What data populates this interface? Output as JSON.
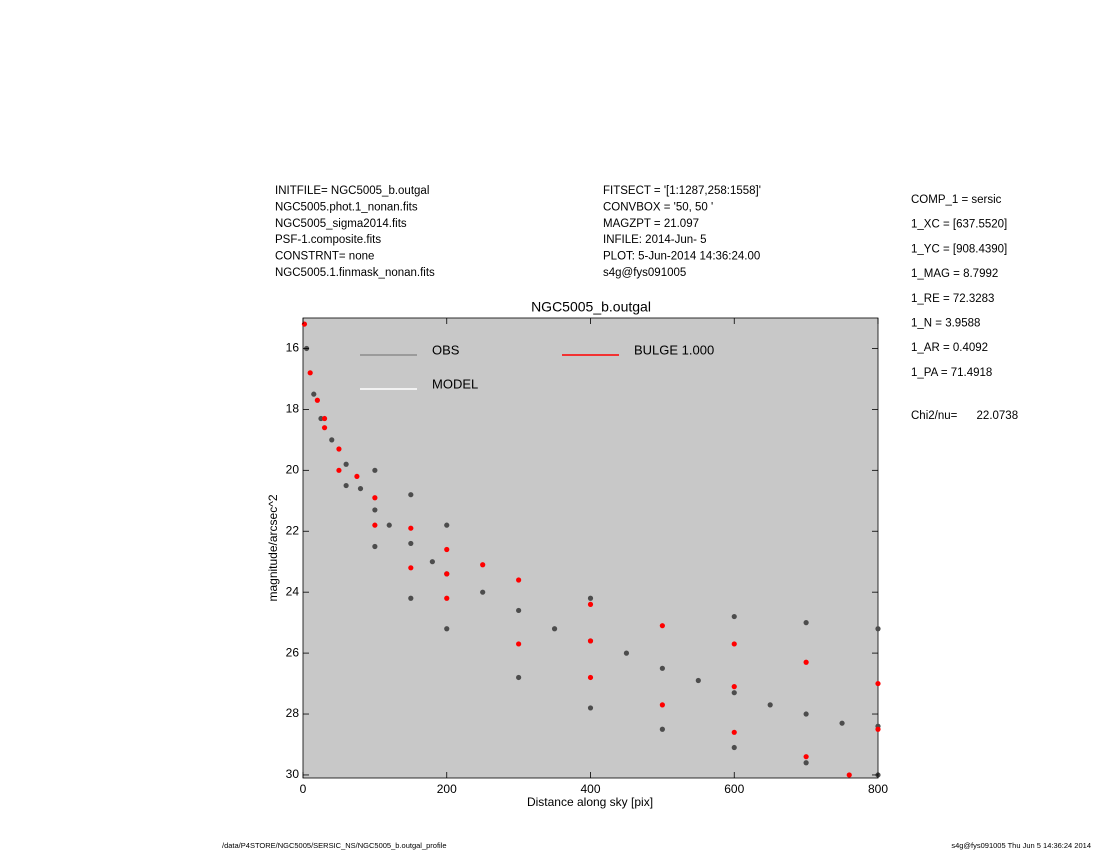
{
  "chart_data": {
    "type": "scatter",
    "title": "NGC5005_b.outgal",
    "x_label": "Distance along sky [pix]",
    "y_label": "magnitude/arcsec^2",
    "header_left": [
      "INITFILE= NGC5005_b.outgal",
      "NGC5005.phot.1_nonan.fits",
      "NGC5005_sigma2014.fits",
      "PSF-1.composite.fits",
      "CONSTRNT= none",
      "NGC5005.1.finmask_nonan.fits"
    ],
    "header_center": [
      "FITSECT = '[1:1287,258:1558]'",
      "CONVBOX = '50, 50  '",
      "MAGZPT  =            21.097",
      "INFILE: 2014-Jun- 5",
      "PLOT:  5-Jun-2014 14:36:24.00",
      "s4g@fys091005"
    ],
    "parameters": [
      "COMP_1  = sersic",
      "1_XC    = [637.5520]",
      "1_YC    = [908.4390]",
      "1_MAG   = 8.7992",
      "1_RE    = 72.3283",
      "1_N     = 3.9588",
      "1_AR    = 0.4092",
      "1_PA    = 71.4918"
    ],
    "chi2": "Chi2/nu=      22.0738",
    "footer_left": "/data/P4STORE/NGC5005/SERSIC_NS/NGC5005_b.outgal_profile",
    "footer_right": "s4g@fys091005  Thu Jun  5 14:36:24 2014",
    "legend": [
      {
        "name": "OBS",
        "color": "#8c8c8c"
      },
      {
        "name": "MODEL",
        "color": "#ffffff"
      },
      {
        "name": "BULGE  1.000",
        "color": "#ff0000"
      }
    ],
    "series": [
      {
        "name": "OBS",
        "color": "#4d4d4d",
        "x": [
          5,
          15,
          25,
          40,
          60,
          80,
          100,
          120,
          150,
          180,
          200,
          250,
          300,
          350,
          400,
          450,
          500,
          550,
          600,
          650,
          700,
          750,
          800,
          60,
          100,
          150,
          200,
          300,
          400,
          500,
          600,
          700,
          800,
          100,
          150,
          200,
          400,
          600,
          700,
          800
        ],
        "values": [
          16,
          17.5,
          18.3,
          19,
          19.8,
          20.6,
          21.3,
          21.8,
          22.4,
          23,
          23.4,
          24,
          24.6,
          25.2,
          25.6,
          26,
          26.5,
          26.9,
          27.3,
          27.7,
          28,
          28.3,
          28.4,
          20.5,
          22.5,
          24.2,
          25.2,
          26.8,
          27.8,
          28.5,
          29.1,
          29.6,
          30,
          20,
          20.8,
          21.8,
          24.2,
          24.8,
          25,
          25.2
        ]
      },
      {
        "name": "BULGE  1.000",
        "color": "#ff0000",
        "x": [
          2,
          10,
          20,
          30,
          50,
          75,
          100,
          150,
          200,
          250,
          300,
          400,
          500,
          600,
          700,
          800,
          30,
          50,
          100,
          150,
          200,
          300,
          400,
          500,
          600,
          700,
          760,
          200,
          400,
          600,
          800
        ],
        "values": [
          15.2,
          16.8,
          17.7,
          18.3,
          19.3,
          20.2,
          20.9,
          21.9,
          22.6,
          23.1,
          23.6,
          24.4,
          25.1,
          25.7,
          26.3,
          27,
          18.6,
          20,
          21.8,
          23.2,
          24.2,
          25.7,
          26.8,
          27.7,
          28.6,
          29.4,
          30,
          23.4,
          25.6,
          27.1,
          28.5
        ]
      }
    ],
    "xlim": [
      0,
      800
    ],
    "xticks": [
      0,
      200,
      400,
      600,
      800
    ],
    "ylim": [
      15,
      30.1
    ],
    "yticks": [
      16,
      18,
      20,
      22,
      24,
      26,
      28,
      30
    ],
    "y_reversed": true,
    "plot_background": "#c8c8c8"
  }
}
